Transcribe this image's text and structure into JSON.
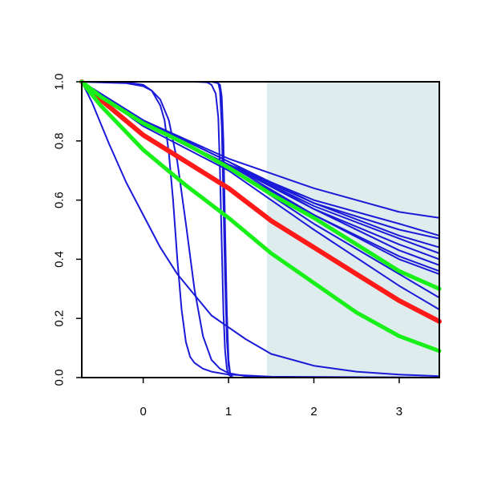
{
  "chart_data": {
    "type": "line",
    "title": "",
    "xlabel": "",
    "ylabel": "",
    "xlim": [
      -0.72,
      3.47
    ],
    "ylim": [
      0,
      1
    ],
    "x_ticks": [
      0,
      1,
      2,
      3
    ],
    "y_ticks": [
      0.0,
      0.2,
      0.4,
      0.6,
      0.8,
      1.0
    ],
    "x_tick_labels": [
      "0",
      "1",
      "2",
      "3"
    ],
    "y_tick_labels": [
      "0.0",
      "0.2",
      "0.4",
      "0.6",
      "0.8",
      "1.0"
    ],
    "grid": false,
    "legend": "none",
    "shaded_region": {
      "x_start": 1.45,
      "x_end": 3.47,
      "color": "#dfeced"
    },
    "colors": {
      "blue": "#1a1ad8",
      "red": "#ff1a1a",
      "green": "#19ef19",
      "axis": "#000000"
    },
    "series": [
      {
        "color": "blue",
        "points": [
          [
            -0.72,
            1.0
          ],
          [
            0.0,
            0.87
          ],
          [
            1.0,
            0.74
          ],
          [
            2.0,
            0.64
          ],
          [
            3.0,
            0.56
          ],
          [
            3.47,
            0.54
          ]
        ]
      },
      {
        "color": "blue",
        "points": [
          [
            -0.72,
            1.0
          ],
          [
            0.0,
            0.86
          ],
          [
            1.0,
            0.72
          ],
          [
            2.0,
            0.6
          ],
          [
            3.0,
            0.52
          ],
          [
            3.47,
            0.48
          ]
        ]
      },
      {
        "color": "blue",
        "points": [
          [
            -0.72,
            1.0
          ],
          [
            0.0,
            0.86
          ],
          [
            1.0,
            0.72
          ],
          [
            2.0,
            0.59
          ],
          [
            3.0,
            0.5
          ],
          [
            3.47,
            0.47
          ]
        ]
      },
      {
        "color": "blue",
        "points": [
          [
            -0.72,
            1.0
          ],
          [
            0.0,
            0.87
          ],
          [
            1.0,
            0.73
          ],
          [
            2.0,
            0.59
          ],
          [
            3.0,
            0.48
          ],
          [
            3.47,
            0.44
          ]
        ]
      },
      {
        "color": "blue",
        "points": [
          [
            -0.72,
            1.0
          ],
          [
            0.0,
            0.86
          ],
          [
            1.0,
            0.72
          ],
          [
            2.0,
            0.58
          ],
          [
            3.0,
            0.47
          ],
          [
            3.47,
            0.42
          ]
        ]
      },
      {
        "color": "blue",
        "points": [
          [
            -0.72,
            1.0
          ],
          [
            0.0,
            0.86
          ],
          [
            1.0,
            0.72
          ],
          [
            2.0,
            0.57
          ],
          [
            3.0,
            0.45
          ],
          [
            3.47,
            0.4
          ]
        ]
      },
      {
        "color": "blue",
        "points": [
          [
            -0.72,
            1.0
          ],
          [
            0.0,
            0.87
          ],
          [
            1.0,
            0.73
          ],
          [
            2.0,
            0.57
          ],
          [
            3.0,
            0.43
          ],
          [
            3.47,
            0.38
          ]
        ]
      },
      {
        "color": "blue",
        "points": [
          [
            -0.72,
            1.0
          ],
          [
            0.0,
            0.86
          ],
          [
            1.0,
            0.72
          ],
          [
            2.0,
            0.55
          ],
          [
            3.0,
            0.41
          ],
          [
            3.47,
            0.36
          ]
        ]
      },
      {
        "color": "blue",
        "points": [
          [
            -0.72,
            1.0
          ],
          [
            0.0,
            0.86
          ],
          [
            1.0,
            0.71
          ],
          [
            2.0,
            0.55
          ],
          [
            3.0,
            0.4
          ],
          [
            3.47,
            0.35
          ]
        ]
      },
      {
        "color": "blue",
        "points": [
          [
            -0.72,
            1.0
          ],
          [
            0.0,
            0.86
          ],
          [
            1.0,
            0.71
          ],
          [
            2.0,
            0.52
          ],
          [
            3.0,
            0.35
          ],
          [
            3.47,
            0.27
          ]
        ]
      },
      {
        "color": "blue",
        "points": [
          [
            -0.72,
            1.0
          ],
          [
            0.0,
            0.85
          ],
          [
            1.0,
            0.7
          ],
          [
            2.0,
            0.5
          ],
          [
            3.0,
            0.31
          ],
          [
            3.47,
            0.23
          ]
        ]
      },
      {
        "color": "blue",
        "points": [
          [
            -0.72,
            1.0
          ],
          [
            -0.6,
            0.93
          ],
          [
            -0.4,
            0.79
          ],
          [
            -0.2,
            0.66
          ],
          [
            0.0,
            0.55
          ],
          [
            0.2,
            0.44
          ],
          [
            0.4,
            0.35
          ],
          [
            0.6,
            0.28
          ],
          [
            0.8,
            0.21
          ],
          [
            1.0,
            0.17
          ],
          [
            1.2,
            0.13
          ],
          [
            1.5,
            0.08
          ],
          [
            2.0,
            0.04
          ],
          [
            2.5,
            0.02
          ],
          [
            3.0,
            0.01
          ],
          [
            3.47,
            0.005
          ]
        ]
      },
      {
        "color": "blue",
        "points": [
          [
            -0.72,
            1.0
          ],
          [
            -0.2,
            0.995
          ],
          [
            0.0,
            0.985
          ],
          [
            0.1,
            0.97
          ],
          [
            0.2,
            0.94
          ],
          [
            0.3,
            0.87
          ],
          [
            0.4,
            0.73
          ],
          [
            0.5,
            0.52
          ],
          [
            0.6,
            0.3
          ],
          [
            0.7,
            0.14
          ],
          [
            0.8,
            0.06
          ],
          [
            0.9,
            0.03
          ],
          [
            1.0,
            0.015
          ],
          [
            1.2,
            0.005
          ],
          [
            1.5,
            0.001
          ],
          [
            3.47,
            0.0
          ]
        ]
      },
      {
        "color": "blue",
        "points": [
          [
            -0.72,
            1.0
          ],
          [
            -0.2,
            0.998
          ],
          [
            0.0,
            0.99
          ],
          [
            0.1,
            0.97
          ],
          [
            0.2,
            0.92
          ],
          [
            0.25,
            0.87
          ],
          [
            0.3,
            0.76
          ],
          [
            0.35,
            0.6
          ],
          [
            0.4,
            0.4
          ],
          [
            0.45,
            0.23
          ],
          [
            0.5,
            0.12
          ],
          [
            0.55,
            0.07
          ],
          [
            0.6,
            0.05
          ],
          [
            0.7,
            0.03
          ],
          [
            0.8,
            0.02
          ],
          [
            1.0,
            0.01
          ],
          [
            1.5,
            0.003
          ],
          [
            3.47,
            0.0
          ]
        ]
      },
      {
        "color": "blue",
        "points": [
          [
            -0.72,
            1.0
          ],
          [
            0.6,
            1.0
          ],
          [
            0.75,
            0.998
          ],
          [
            0.8,
            0.99
          ],
          [
            0.85,
            0.96
          ],
          [
            0.88,
            0.88
          ],
          [
            0.9,
            0.7
          ],
          [
            0.92,
            0.45
          ],
          [
            0.94,
            0.22
          ],
          [
            0.96,
            0.09
          ],
          [
            0.98,
            0.03
          ],
          [
            1.0,
            0.01
          ],
          [
            1.05,
            0.0
          ],
          [
            3.47,
            0.0
          ]
        ]
      },
      {
        "color": "blue",
        "points": [
          [
            -0.72,
            1.0
          ],
          [
            0.8,
            1.0
          ],
          [
            0.88,
            0.995
          ],
          [
            0.9,
            0.97
          ],
          [
            0.92,
            0.85
          ],
          [
            0.94,
            0.6
          ],
          [
            0.96,
            0.33
          ],
          [
            0.98,
            0.13
          ],
          [
            1.0,
            0.04
          ],
          [
            1.02,
            0.01
          ],
          [
            1.05,
            0.0
          ],
          [
            3.47,
            0.0
          ]
        ]
      },
      {
        "color": "blue",
        "points": [
          [
            -0.72,
            1.0
          ],
          [
            0.85,
            1.0
          ],
          [
            0.9,
            0.99
          ],
          [
            0.92,
            0.95
          ],
          [
            0.94,
            0.8
          ],
          [
            0.96,
            0.5
          ],
          [
            0.98,
            0.22
          ],
          [
            1.0,
            0.06
          ],
          [
            1.02,
            0.01
          ],
          [
            1.05,
            0.0
          ],
          [
            3.47,
            0.0
          ]
        ]
      },
      {
        "color": "red",
        "width": 6,
        "points": [
          [
            -0.72,
            1.0
          ],
          [
            -0.5,
            0.94
          ],
          [
            0.0,
            0.82
          ],
          [
            0.5,
            0.73
          ],
          [
            1.0,
            0.64
          ],
          [
            1.5,
            0.53
          ],
          [
            2.0,
            0.44
          ],
          [
            2.5,
            0.35
          ],
          [
            3.0,
            0.26
          ],
          [
            3.47,
            0.19
          ]
        ]
      },
      {
        "color": "green",
        "width": 5,
        "points": [
          [
            -0.72,
            1.0
          ],
          [
            -0.5,
            0.95
          ],
          [
            0.0,
            0.86
          ],
          [
            0.5,
            0.79
          ],
          [
            1.0,
            0.71
          ],
          [
            1.5,
            0.62
          ],
          [
            2.0,
            0.54
          ],
          [
            2.5,
            0.45
          ],
          [
            3.0,
            0.36
          ],
          [
            3.47,
            0.3
          ]
        ]
      },
      {
        "color": "green",
        "width": 5,
        "points": [
          [
            -0.72,
            1.0
          ],
          [
            -0.5,
            0.92
          ],
          [
            0.0,
            0.77
          ],
          [
            0.5,
            0.65
          ],
          [
            1.0,
            0.54
          ],
          [
            1.5,
            0.42
          ],
          [
            2.0,
            0.32
          ],
          [
            2.5,
            0.22
          ],
          [
            3.0,
            0.14
          ],
          [
            3.47,
            0.09
          ]
        ]
      }
    ]
  }
}
